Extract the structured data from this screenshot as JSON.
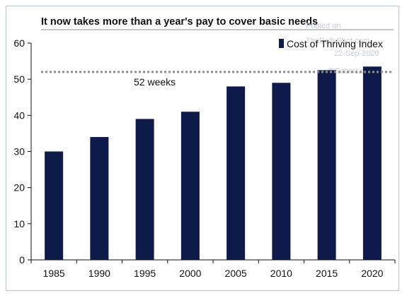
{
  "colors": {
    "bar": "#0e1a4a",
    "axis": "#111111",
    "reference_line": "#8c8c8c",
    "watermark": "#c9ced6"
  },
  "watermark": {
    "lines": [
      "Posted on",
      "TheDailyShot.com",
      "22-Sep-2020",
      "@SoberLook"
    ]
  },
  "chart_data": {
    "type": "bar",
    "title": "It now takes more than a year's pay to cover basic needs",
    "xlabel": "",
    "ylabel": "",
    "categories": [
      "1985",
      "1990",
      "1995",
      "2000",
      "2005",
      "2010",
      "2015",
      "2020"
    ],
    "series": [
      {
        "name": "Cost of Thriving Index",
        "values": [
          30,
          34,
          39,
          41,
          48,
          49,
          52.5,
          53.5
        ]
      }
    ],
    "ylim": [
      0,
      60
    ],
    "yticks": [
      0,
      10,
      20,
      30,
      40,
      50,
      60
    ],
    "grid": false,
    "legend": "top-right",
    "reference_line": {
      "value": 52,
      "label": "52 weeks",
      "style": "dotted"
    }
  }
}
